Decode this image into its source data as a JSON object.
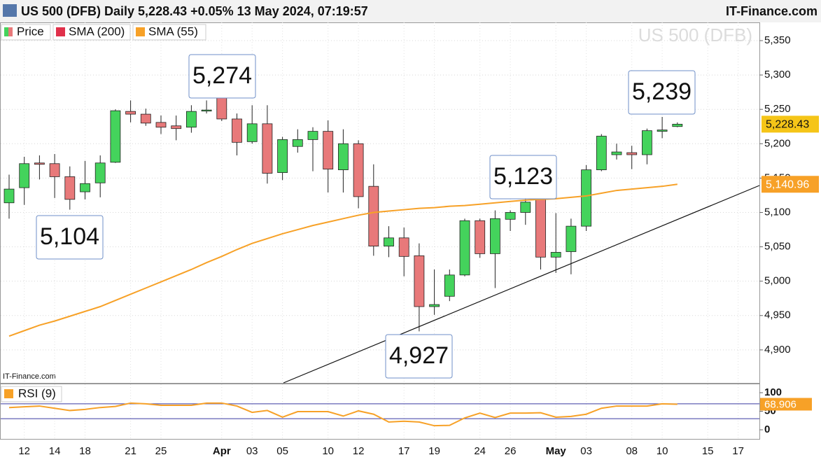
{
  "chart_data": {
    "type": "candlestick",
    "title": "US 500 (DFB) Daily 5,228.43 +0.05% 13 May 2024, 07:19:57",
    "source": "IT-Finance.com",
    "watermark": "US 500 (DFB)",
    "price_name": "Price",
    "up_color": "#44d35c",
    "down_color": "#e8797a",
    "categories": [
      null,
      "12",
      null,
      "14",
      null,
      "18",
      null,
      null,
      "21",
      null,
      "25",
      null,
      null,
      null,
      "Apr",
      null,
      "03",
      null,
      "05",
      null,
      null,
      "10",
      null,
      "12",
      null,
      null,
      "17",
      null,
      "19",
      null,
      null,
      "24",
      null,
      "26",
      null,
      null,
      "May",
      null,
      "03",
      null,
      null,
      "08",
      null,
      "10",
      null,
      null,
      "15",
      null,
      "17"
    ],
    "open": [
      5114,
      5136,
      5172,
      5171,
      5152,
      5130,
      5143,
      5173,
      5247,
      5243,
      5231,
      5226,
      5224,
      5248,
      5271,
      5236,
      5203,
      5229,
      5158,
      5196,
      5206,
      5218,
      5162,
      5200,
      5138,
      5051,
      5063,
      5037,
      4963,
      4978,
      5009,
      5088,
      5040,
      5090,
      5100,
      5140,
      5035,
      5043,
      5080,
      5162,
      5184,
      5187,
      5184,
      5218,
      5225,
      null,
      null,
      null,
      null
    ],
    "high": [
      5155,
      5181,
      5183,
      5185,
      5167,
      5175,
      5183,
      5250,
      5263,
      5251,
      5241,
      5241,
      5256,
      5263,
      5274,
      5244,
      5256,
      5256,
      5210,
      5221,
      5224,
      5234,
      5221,
      5205,
      5170,
      5080,
      5078,
      5055,
      5017,
      5017,
      5091,
      5091,
      5103,
      5103,
      5123,
      5142,
      5099,
      5091,
      5169,
      5214,
      5200,
      5197,
      5222,
      5239,
      5231,
      null,
      null,
      null,
      null
    ],
    "low": [
      5091,
      5111,
      5148,
      5121,
      5104,
      5119,
      5122,
      5172,
      5231,
      5226,
      5214,
      5205,
      5216,
      5244,
      5233,
      5183,
      5200,
      5142,
      5147,
      5187,
      5160,
      5129,
      5129,
      5106,
      5037,
      5035,
      5007,
      4927,
      4951,
      4971,
      5007,
      5034,
      4990,
      5073,
      5082,
      5017,
      5012,
      5010,
      5073,
      5160,
      5177,
      5163,
      5170,
      5208,
      5224,
      null,
      null,
      null,
      null
    ],
    "close": [
      5134,
      5171,
      5170,
      5152,
      5119,
      5142,
      5172,
      5248,
      5243,
      5230,
      5224,
      5222,
      5247,
      5249,
      5236,
      5202,
      5229,
      5157,
      5206,
      5206,
      5218,
      5163,
      5200,
      5123,
      5051,
      5063,
      5036,
      4963,
      4966,
      5009,
      5088,
      5040,
      5091,
      5100,
      5115,
      5035,
      5042,
      5080,
      5162,
      5211,
      5188,
      5184,
      5219,
      5220,
      5228.43,
      null,
      null,
      null,
      null
    ],
    "close_label": "5,228.43",
    "sma": [
      {
        "name": "SMA (200)",
        "color": "#e0304a"
      },
      {
        "name": "SMA (55)",
        "color": "#f7a127",
        "last_label": "5,140.96",
        "values": [
          4920,
          4928,
          4936,
          4942,
          4949,
          4956,
          4963,
          4972,
          4981,
          4990,
          4999,
          5008,
          5017,
          5027,
          5036,
          5046,
          5055,
          5062,
          5069,
          5075,
          5081,
          5086,
          5091,
          5096,
          5100,
          5102,
          5104,
          5106,
          5107,
          5109,
          5110,
          5112,
          5114,
          5116,
          5118,
          5119,
          5120,
          5122,
          5124,
          5128,
          5132,
          5134,
          5136,
          5138,
          5140.96,
          null,
          null,
          null,
          null
        ]
      }
    ],
    "ylim": [
      4852,
      5376.5
    ],
    "yticks": [
      {
        "value": 4900,
        "label": "4,900"
      },
      {
        "value": 4950,
        "label": "4,950"
      },
      {
        "value": 5000,
        "label": "5,000"
      },
      {
        "value": 5050,
        "label": "5,050"
      },
      {
        "value": 5100,
        "label": "5,100"
      },
      {
        "value": 5150,
        "label": "5,150"
      },
      {
        "value": 5200,
        "label": "5,200"
      },
      {
        "value": 5250,
        "label": "5,250"
      },
      {
        "value": 5300,
        "label": "5,300"
      },
      {
        "value": 5350,
        "label": "5,350"
      }
    ],
    "grid": true,
    "annotations": [
      {
        "value": 5274,
        "label": "5,274"
      },
      {
        "value": 5104,
        "label": "5,104"
      },
      {
        "value": 5123,
        "label": "5,123"
      },
      {
        "value": 5239,
        "label": "5,239"
      },
      {
        "value": 4927,
        "label": "4,927"
      }
    ],
    "rsi": {
      "name": "RSI (9)",
      "color": "#f7a127",
      "level_color": "#3a3aa0",
      "last_label": "68.906",
      "values": [
        60,
        62,
        64,
        58,
        52,
        55,
        60,
        63,
        72,
        70,
        66,
        66,
        66,
        72,
        72,
        64,
        47,
        52,
        34,
        49,
        49,
        49,
        37,
        51,
        42,
        21,
        23,
        21,
        11,
        12,
        32,
        45,
        33,
        45,
        45,
        46,
        34,
        36,
        42,
        58,
        64,
        64,
        64,
        70,
        68.906,
        null,
        null,
        null,
        null
      ],
      "levels": [
        30,
        70
      ],
      "ylim": [
        -26.4,
        122.6
      ],
      "yticks": [
        0,
        50,
        100
      ]
    }
  }
}
